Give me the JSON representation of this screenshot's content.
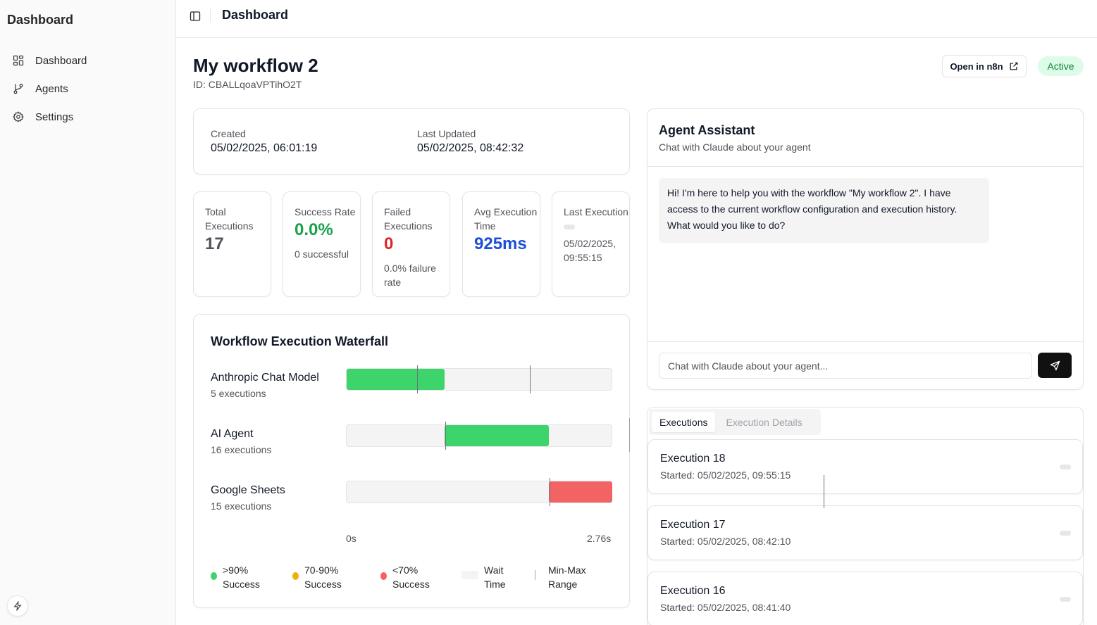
{
  "sidebar": {
    "title": "Dashboard",
    "items": [
      {
        "label": "Dashboard",
        "icon": "dashboard-grid-icon"
      },
      {
        "label": "Agents",
        "icon": "git-branch-icon"
      },
      {
        "label": "Settings",
        "icon": "gear-icon"
      }
    ]
  },
  "topbar": {
    "title": "Dashboard"
  },
  "workflow": {
    "name": "My workflow 2",
    "id_text": "ID: CBALLqoaVPTihO2T",
    "open_label": "Open in n8n",
    "status": "Active"
  },
  "dates": {
    "created_label": "Created",
    "created_value": "05/02/2025, 06:01:19",
    "updated_label": "Last Updated",
    "updated_value": "05/02/2025, 08:42:32"
  },
  "stats": {
    "total": {
      "label": "Total Executions",
      "value": "17"
    },
    "success": {
      "label": "Success Rate",
      "value": "0.0%",
      "sub": "0 successful"
    },
    "failed": {
      "label": "Failed Executions",
      "value": "0",
      "sub": "0.0% failure rate"
    },
    "avg": {
      "label": "Avg Execution Time",
      "value": "925ms"
    },
    "last": {
      "label": "Last Execution",
      "sub": "05/02/2025, 09:55:15"
    }
  },
  "waterfall": {
    "title": "Workflow Execution Waterfall",
    "axis_start": "0s",
    "axis_end": "2.76s",
    "rows": [
      {
        "name": "Anthropic Chat Model",
        "count": "5 executions"
      },
      {
        "name": "AI Agent",
        "count": "16 executions"
      },
      {
        "name": "Google Sheets",
        "count": "15 executions"
      }
    ],
    "legend": {
      "high": ">90% Success",
      "mid": "70-90% Success",
      "low": "<70% Success",
      "wait": "Wait Time",
      "range": "Min-Max Range"
    },
    "colors": {
      "high": "#3dd46c",
      "mid": "#eab308",
      "low": "#f26464"
    }
  },
  "assistant": {
    "title": "Agent Assistant",
    "subtitle": "Chat with Claude about your agent",
    "message": "Hi! I'm here to help you with the workflow \"My workflow 2\". I have access to the current workflow configuration and execution history. What would you like to do?",
    "input_placeholder": "Chat with Claude about your agent..."
  },
  "executions": {
    "tabs": [
      "Executions",
      "Execution Details"
    ],
    "items": [
      {
        "name": "Execution 18",
        "started": "Started: 05/02/2025, 09:55:15"
      },
      {
        "name": "Execution 17",
        "started": "Started: 05/02/2025, 08:42:10"
      },
      {
        "name": "Execution 16",
        "started": "Started: 05/02/2025, 08:41:40"
      }
    ]
  }
}
